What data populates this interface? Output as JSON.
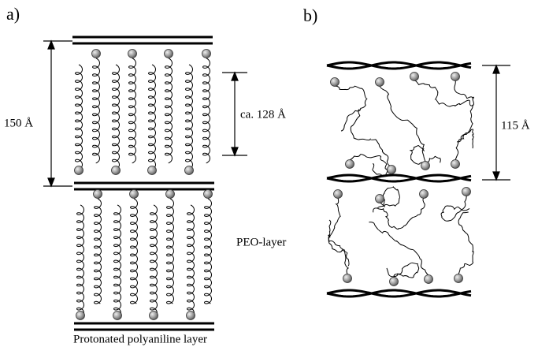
{
  "panel_a": {
    "label": "a)",
    "spacing": "150 Å",
    "inner_spacing": "ca. 128 Å",
    "peo_label": "PEO-layer",
    "polyaniline_label": "Protonated polyaniline layer"
  },
  "panel_b": {
    "label": "b)",
    "spacing": "115 Å"
  }
}
